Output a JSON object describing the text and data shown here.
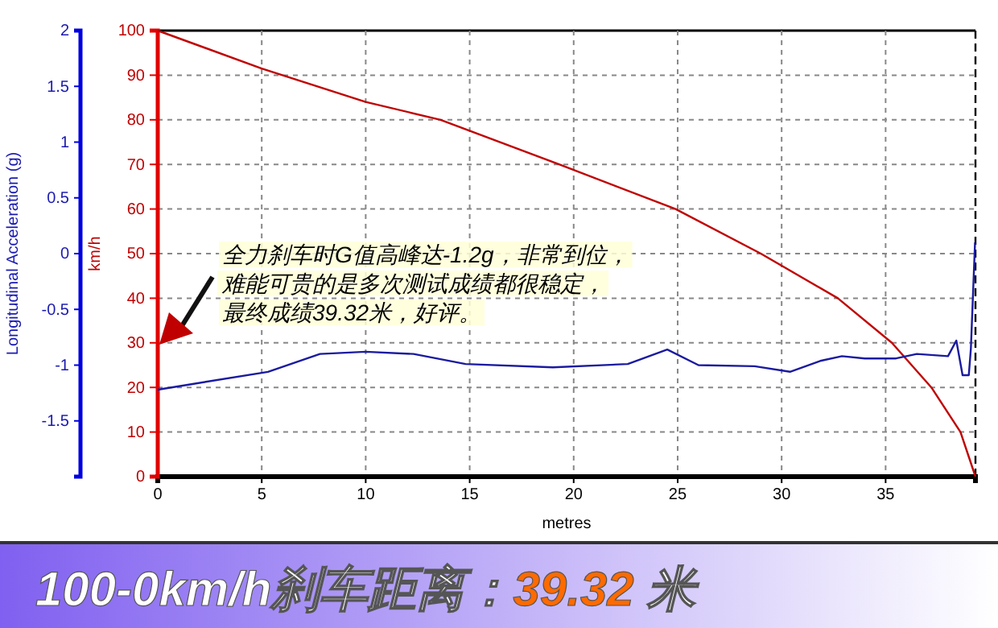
{
  "chart_data": {
    "type": "line",
    "title": "100-0km/h刹车距离：39.32 米",
    "xlabel": "metres",
    "ylabel": "km/h",
    "y2label": "Longitudinal Acceleration (g)",
    "xlim": [
      0,
      39.32
    ],
    "xticks": [
      0,
      5,
      10,
      15,
      20,
      25,
      30,
      35
    ],
    "ylim": [
      0,
      100
    ],
    "yticks": [
      0,
      10,
      20,
      30,
      40,
      50,
      60,
      70,
      80,
      90,
      100
    ],
    "y2lim": [
      -2,
      2
    ],
    "y2ticks": [
      -1.5,
      -1,
      -0.5,
      0,
      0.5,
      1,
      1.5,
      2
    ],
    "grid": true,
    "line_style": "solid",
    "series": [
      {
        "color": "#c00000",
        "x": [
          0,
          5,
          10,
          13.6,
          19.3,
          24.9,
          29,
          32.7,
          35.3,
          37.2,
          38.6,
          39.32
        ],
        "values": [
          100,
          91.5,
          84,
          80,
          70,
          60,
          50,
          40,
          30,
          20,
          10,
          0
        ]
      },
      {
        "color": "#1a1aa0",
        "axis": "y2",
        "x": [
          0,
          5.3,
          7.8,
          10,
          12.3,
          14.8,
          19,
          22.6,
          24.5,
          26,
          28.7,
          30.4,
          31.9,
          32.9,
          34,
          35.5,
          36.5,
          38,
          38.4,
          38.7,
          39,
          39.1,
          39.3
        ],
        "values": [
          -1.22,
          -1.06,
          -0.9,
          -0.88,
          -0.9,
          -0.99,
          -1.02,
          -0.99,
          -0.86,
          -1,
          -1.01,
          -1.06,
          -0.96,
          -0.92,
          -0.94,
          -0.94,
          -0.9,
          -0.92,
          -0.78,
          -1.09,
          -1.09,
          -0.85,
          0.1
        ]
      }
    ],
    "ref_lines": [
      {
        "axis": "x",
        "value": 39.32,
        "color": "#000000",
        "line_style": "dashed"
      }
    ],
    "annotations": [
      "全力刹车时G值高峰达-1.2g，非常到位，",
      "难能可贵的是多次测试成绩都很稳定，",
      "最终成绩39.32米，好评。"
    ]
  }
}
